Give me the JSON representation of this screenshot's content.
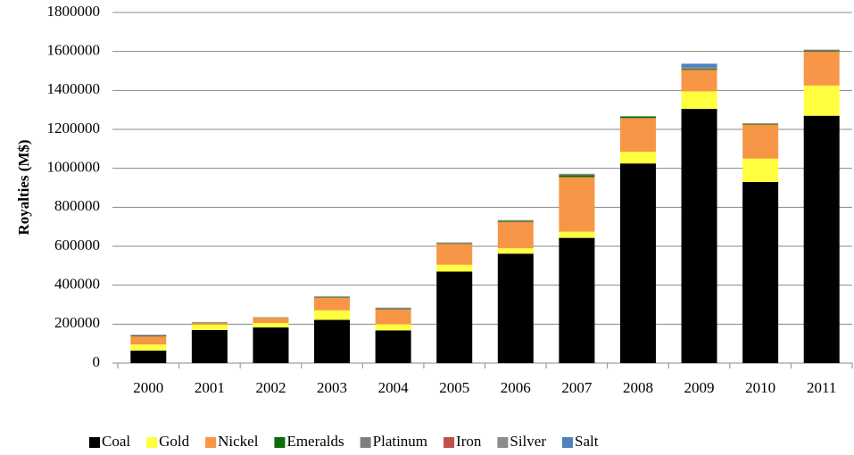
{
  "chart_data": {
    "type": "stacked_bar",
    "y_label": "Royalties (M$)",
    "categories": [
      "2000",
      "2001",
      "2002",
      "2003",
      "2004",
      "2005",
      "2006",
      "2007",
      "2008",
      "2009",
      "2010",
      "2011"
    ],
    "series": [
      {
        "name": "Coal",
        "color": "#000000",
        "values": [
          64000,
          170000,
          183000,
          222000,
          168000,
          470000,
          562000,
          643000,
          1025000,
          1305000,
          930000,
          1270000
        ]
      },
      {
        "name": "Gold",
        "color": "#ffff40",
        "values": [
          32000,
          27000,
          23000,
          49000,
          32000,
          35000,
          28000,
          32000,
          60000,
          90000,
          120000,
          155000
        ]
      },
      {
        "name": "Nickel",
        "color": "#f79646",
        "values": [
          41000,
          9000,
          27000,
          64000,
          75000,
          107000,
          135000,
          280000,
          173000,
          110000,
          175000,
          175000
        ]
      },
      {
        "name": "Emeralds",
        "color": "#0b6b0b",
        "values": [
          3000,
          2000,
          1000,
          3000,
          3000,
          3000,
          4000,
          10000,
          8000,
          5000,
          3000,
          3000
        ]
      },
      {
        "name": "Platinum",
        "color": "#7f7f7f",
        "values": [
          4000,
          1000,
          1000,
          3000,
          5000,
          3000,
          4000,
          5000,
          1000,
          5000,
          2000,
          5000
        ]
      },
      {
        "name": "Iron",
        "color": "#c0504d",
        "values": [
          1000,
          0,
          0,
          1000,
          1000,
          1000,
          1000,
          1000,
          0,
          1000,
          1000,
          1000
        ]
      },
      {
        "name": "Silver",
        "color": "#8c8c8c",
        "values": [
          1000,
          1000,
          1000,
          1000,
          1000,
          1000,
          1000,
          1000,
          1000,
          1000,
          1000,
          1000
        ]
      },
      {
        "name": "Salt",
        "color": "#4f81bd",
        "values": [
          0,
          0,
          0,
          0,
          0,
          0,
          0,
          0,
          0,
          20000,
          0,
          0
        ]
      }
    ],
    "ylim": [
      0,
      1800000
    ],
    "yticks": [
      0,
      200000,
      400000,
      600000,
      800000,
      1000000,
      1200000,
      1400000,
      1600000,
      1800000
    ],
    "grid": true,
    "legend": "bottom"
  }
}
